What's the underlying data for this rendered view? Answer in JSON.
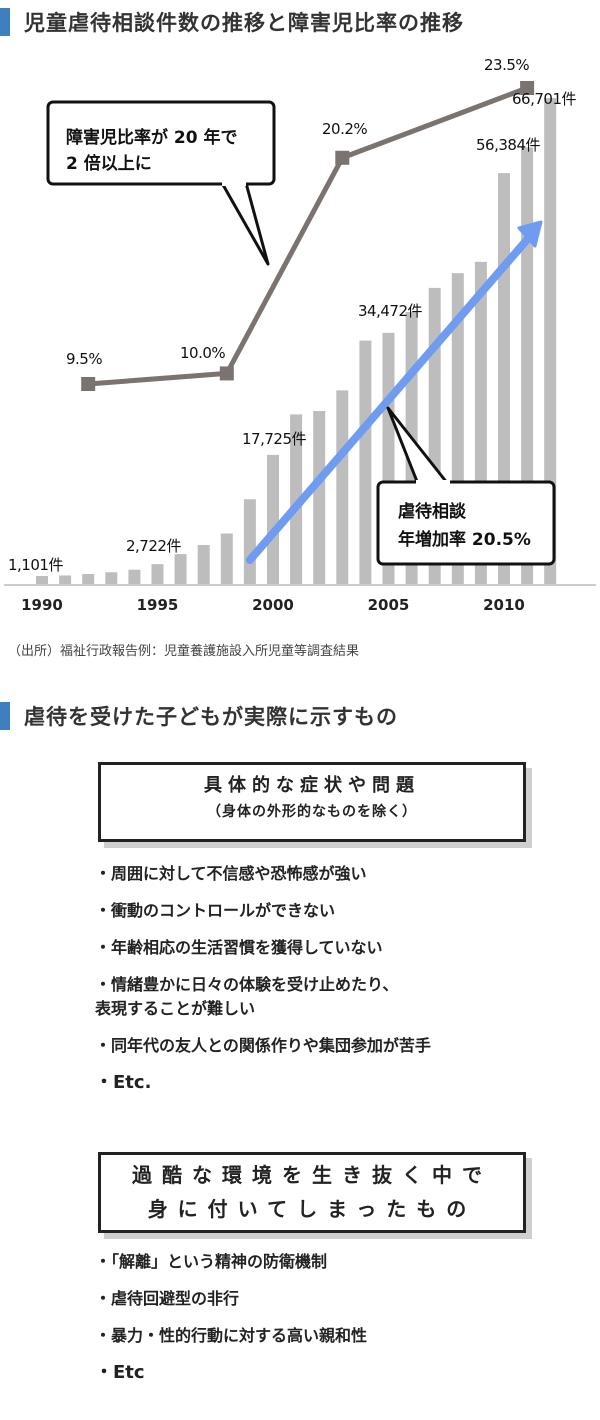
{
  "section1": {
    "title": "児童虐待相談件数の推移と障害児比率の推移"
  },
  "chart_data": {
    "type": "bar+line",
    "bars": {
      "name": "児童虐待相談件数",
      "unit": "件",
      "x": [
        1990,
        1991,
        1992,
        1993,
        1994,
        1995,
        1996,
        1997,
        1998,
        1999,
        2000,
        2001,
        2002,
        2003,
        2004,
        2005,
        2006,
        2007,
        2008,
        2009,
        2010,
        2011,
        2012
      ],
      "values": [
        1101,
        1171,
        1372,
        1611,
        1961,
        2722,
        4102,
        5352,
        6932,
        11631,
        17725,
        23274,
        23738,
        26569,
        33408,
        34472,
        37323,
        40639,
        42664,
        44211,
        56384,
        59919,
        66701
      ],
      "labels": [
        {
          "year": 1990,
          "text": "1,101件"
        },
        {
          "year": 1995,
          "text": "2,722件"
        },
        {
          "year": 2000,
          "text": "17,725件"
        },
        {
          "year": 2005,
          "text": "34,472件"
        },
        {
          "year": 2010,
          "text": "56,384件"
        },
        {
          "year": 2012,
          "text": "66,701件"
        }
      ],
      "color": "#bdbdbd"
    },
    "line": {
      "name": "障害児比率",
      "points": [
        {
          "year": 1992,
          "value": 9.5,
          "label": "9.5%"
        },
        {
          "year": 1998,
          "value": 10.0,
          "label": "10.0%"
        },
        {
          "year": 2003,
          "value": 20.2,
          "label": "20.2%"
        },
        {
          "year": 2011,
          "value": 23.5,
          "label": "23.5%"
        }
      ],
      "color": "#7a7370"
    },
    "x_ticks": [
      "1990",
      "1995",
      "2000",
      "2005",
      "2010"
    ],
    "ylim_bars": [
      0,
      66701
    ],
    "ylim_line": [
      0,
      25
    ],
    "grid": false,
    "trend_arrow_color": "#6f9cf0",
    "callout1": {
      "line1": "障害児比率が 20 年で",
      "line2": "2 倍以上に"
    },
    "callout2": {
      "line1": "虐待相談",
      "line2": "年増加率 20.5%"
    }
  },
  "source": "（出所）福祉行政報告例：児童養護施設入所児童等調査結果",
  "section2": {
    "title": "虐待を受けた子どもが実際に示すもの"
  },
  "box1": {
    "title": "具体的な症状や問題",
    "subtitle": "（身体の外形的なものを除く）"
  },
  "list1": [
    "周囲に対して不信感や恐怖感が強い",
    "衝動のコントロールができない",
    "年齢相応の生活習慣を獲得していない",
    "情緒豊かに日々の体験を受け止めたり、\n表現することが難しい",
    "同年代の友人との関係作りや集団参加が苦手",
    "Etc."
  ],
  "box2": {
    "line1": "過酷な環境を生き抜く中で",
    "line2": "身に付いてしまったもの"
  },
  "list2": [
    "「解離」という精神の防衛機制",
    "虐待回避型の非行",
    "暴力・性的行動に対する高い親和性",
    "Etc"
  ]
}
